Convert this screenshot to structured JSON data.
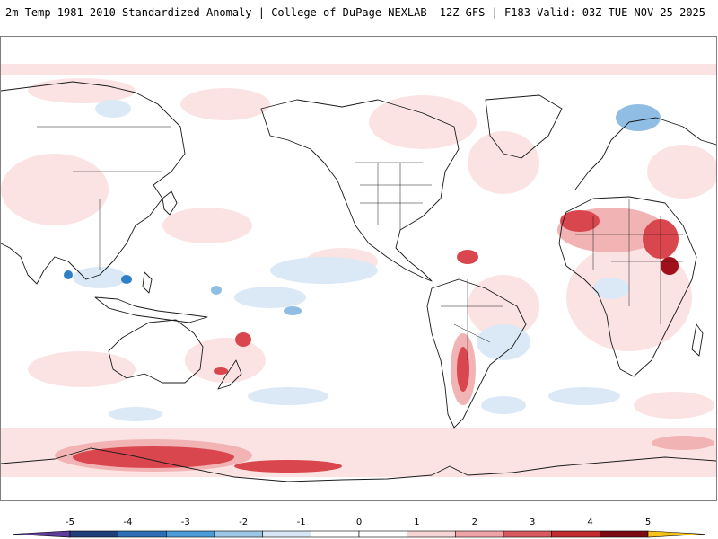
{
  "header": {
    "title_left": "2m Temp 1981-2010 Standardized Anomaly | College of DuPage NEXLAB",
    "title_right": "12Z GFS | F183 Valid: 03Z TUE NOV 25 2025"
  },
  "colorbar": {
    "labels": [
      "-5",
      "-4",
      "-3",
      "-2",
      "-1",
      "0",
      "1",
      "2",
      "3",
      "4",
      "5"
    ],
    "colors": [
      "#5e3c99",
      "#1f3f7a",
      "#2c6fb5",
      "#4a9bd6",
      "#9cc6e6",
      "#d6e6f4",
      "#ffffff",
      "#ffffff",
      "#f7d4d4",
      "#eea3a6",
      "#d85a60",
      "#c22a31",
      "#7a0b12",
      "#f5c21b"
    ],
    "min": -5,
    "max": 5,
    "step": 0.5
  },
  "colors": {
    "coastline": "#1a1a1a",
    "warm_light": "#fbe3e3",
    "warm_mid": "#f2b3b5",
    "warm_strong": "#d9464d",
    "warm_extreme": "#a0101a",
    "cold_light": "#dbe9f6",
    "cold_mid": "#8fbde4",
    "cold_strong": "#2f7fc7"
  }
}
